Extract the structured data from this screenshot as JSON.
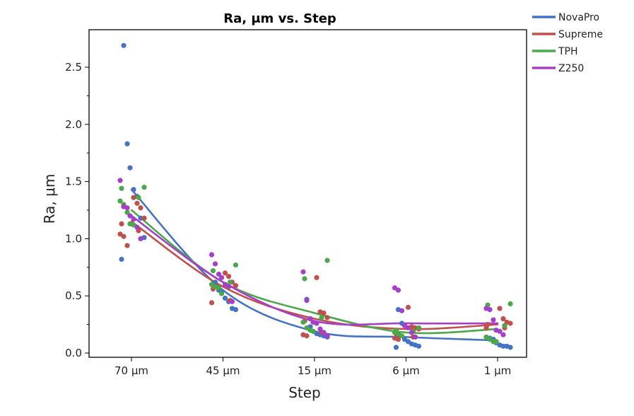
{
  "chart_data": {
    "type": "scatter",
    "title": "Ra, μm vs. Step",
    "xlabel": "Step",
    "ylabel": "Ra, μm",
    "categories": [
      "70 μm",
      "45 μm",
      "15 μm",
      "6 μm",
      "1 μm"
    ],
    "ylim": [
      0,
      2.8
    ],
    "yticks": [
      "0.0",
      "0.5",
      "1.0",
      "1.5",
      "2.0",
      "2.5"
    ],
    "legend_position": "top-right",
    "grid": false,
    "series": [
      {
        "name": "NovaPro",
        "color": "#4472c4",
        "points": [
          [
            0,
            2.69
          ],
          [
            0,
            1.83
          ],
          [
            0,
            1.62
          ],
          [
            0,
            1.43
          ],
          [
            0,
            1.37
          ],
          [
            0,
            1.18
          ],
          [
            0,
            1.01
          ],
          [
            0,
            0.82
          ],
          [
            1,
            0.62
          ],
          [
            1,
            0.55
          ],
          [
            1,
            0.53
          ],
          [
            1,
            0.48
          ],
          [
            1,
            0.45
          ],
          [
            1,
            0.39
          ],
          [
            1,
            0.38
          ],
          [
            2,
            0.47
          ],
          [
            2,
            0.23
          ],
          [
            2,
            0.19
          ],
          [
            2,
            0.17
          ],
          [
            2,
            0.16
          ],
          [
            2,
            0.15
          ],
          [
            2,
            0.14
          ],
          [
            3,
            0.38
          ],
          [
            3,
            0.26
          ],
          [
            3,
            0.12
          ],
          [
            3,
            0.1
          ],
          [
            3,
            0.08
          ],
          [
            3,
            0.07
          ],
          [
            3,
            0.06
          ],
          [
            3,
            0.05
          ],
          [
            4,
            0.13
          ],
          [
            4,
            0.12
          ],
          [
            4,
            0.09
          ],
          [
            4,
            0.07
          ],
          [
            4,
            0.06
          ],
          [
            4,
            0.06
          ],
          [
            4,
            0.05
          ]
        ],
        "fit": [
          1.43,
          0.55,
          0.19,
          0.14,
          0.11
        ]
      },
      {
        "name": "Supreme",
        "color": "#c0504d",
        "points": [
          [
            0,
            1.36
          ],
          [
            0,
            1.31
          ],
          [
            0,
            1.27
          ],
          [
            0,
            1.18
          ],
          [
            0,
            1.13
          ],
          [
            0,
            1.07
          ],
          [
            0,
            1.04
          ],
          [
            0,
            1.02
          ],
          [
            0,
            0.94
          ],
          [
            1,
            0.7
          ],
          [
            1,
            0.67
          ],
          [
            1,
            0.62
          ],
          [
            1,
            0.59
          ],
          [
            1,
            0.56
          ],
          [
            1,
            0.46
          ],
          [
            1,
            0.44
          ],
          [
            2,
            0.66
          ],
          [
            2,
            0.36
          ],
          [
            2,
            0.35
          ],
          [
            2,
            0.31
          ],
          [
            2,
            0.28
          ],
          [
            2,
            0.18
          ],
          [
            2,
            0.16
          ],
          [
            2,
            0.15
          ],
          [
            3,
            0.4
          ],
          [
            3,
            0.23
          ],
          [
            3,
            0.22
          ],
          [
            3,
            0.21
          ],
          [
            3,
            0.17
          ],
          [
            3,
            0.14
          ],
          [
            3,
            0.13
          ],
          [
            3,
            0.12
          ],
          [
            4,
            0.39
          ],
          [
            4,
            0.3
          ],
          [
            4,
            0.27
          ],
          [
            4,
            0.26
          ],
          [
            4,
            0.25
          ],
          [
            4,
            0.22
          ],
          [
            4,
            0.22
          ]
        ],
        "fit": [
          1.15,
          0.58,
          0.3,
          0.21,
          0.25
        ]
      },
      {
        "name": "TPH",
        "color": "#4aa84a",
        "points": [
          [
            0,
            1.45
          ],
          [
            0,
            1.44
          ],
          [
            0,
            1.36
          ],
          [
            0,
            1.33
          ],
          [
            0,
            1.3
          ],
          [
            0,
            1.23
          ],
          [
            0,
            1.13
          ],
          [
            0,
            1.12
          ],
          [
            1,
            0.77
          ],
          [
            1,
            0.72
          ],
          [
            1,
            0.62
          ],
          [
            1,
            0.6
          ],
          [
            1,
            0.58
          ],
          [
            1,
            0.57
          ],
          [
            1,
            0.52
          ],
          [
            2,
            0.81
          ],
          [
            2,
            0.65
          ],
          [
            2,
            0.31
          ],
          [
            2,
            0.27
          ],
          [
            2,
            0.22
          ],
          [
            2,
            0.2
          ],
          [
            2,
            0.19
          ],
          [
            3,
            0.22
          ],
          [
            3,
            0.2
          ],
          [
            3,
            0.19
          ],
          [
            3,
            0.18
          ],
          [
            3,
            0.17
          ],
          [
            3,
            0.15
          ],
          [
            4,
            0.43
          ],
          [
            4,
            0.42
          ],
          [
            4,
            0.24
          ],
          [
            4,
            0.14
          ],
          [
            4,
            0.12
          ],
          [
            4,
            0.1
          ],
          [
            4,
            0.1
          ]
        ],
        "fit": [
          1.25,
          0.62,
          0.35,
          0.18,
          0.21
        ]
      },
      {
        "name": "Z250",
        "color": "#a53fc7",
        "points": [
          [
            0,
            1.51
          ],
          [
            0,
            1.28
          ],
          [
            0,
            1.27
          ],
          [
            0,
            1.2
          ],
          [
            0,
            1.17
          ],
          [
            0,
            1.1
          ],
          [
            0,
            1.0
          ],
          [
            1,
            0.86
          ],
          [
            1,
            0.78
          ],
          [
            1,
            0.69
          ],
          [
            1,
            0.66
          ],
          [
            1,
            0.6
          ],
          [
            1,
            0.58
          ],
          [
            1,
            0.45
          ],
          [
            2,
            0.71
          ],
          [
            2,
            0.46
          ],
          [
            2,
            0.3
          ],
          [
            2,
            0.27
          ],
          [
            2,
            0.26
          ],
          [
            2,
            0.21
          ],
          [
            2,
            0.18
          ],
          [
            2,
            0.15
          ],
          [
            3,
            0.57
          ],
          [
            3,
            0.55
          ],
          [
            3,
            0.37
          ],
          [
            3,
            0.24
          ],
          [
            3,
            0.22
          ],
          [
            3,
            0.18
          ],
          [
            3,
            0.14
          ],
          [
            4,
            0.39
          ],
          [
            4,
            0.38
          ],
          [
            4,
            0.29
          ],
          [
            4,
            0.2
          ],
          [
            4,
            0.19
          ],
          [
            4,
            0.16
          ]
        ],
        "fit": [
          1.2,
          0.62,
          0.28,
          0.26,
          0.26
        ]
      }
    ]
  }
}
